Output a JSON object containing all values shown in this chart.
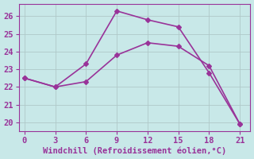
{
  "line1_x": [
    0,
    3,
    6,
    9,
    12,
    15,
    18,
    21
  ],
  "line1_y": [
    22.5,
    22.0,
    23.3,
    26.3,
    25.8,
    25.4,
    22.8,
    19.9
  ],
  "line2_x": [
    0,
    3,
    6,
    9,
    12,
    15,
    18,
    21
  ],
  "line2_y": [
    22.5,
    22.0,
    22.3,
    23.8,
    24.5,
    24.3,
    23.2,
    19.9
  ],
  "line_color": "#993399",
  "bg_color": "#C8E8E8",
  "xlabel": "Windchill (Refroidissement éolien,°C)",
  "xlabel_color": "#993399",
  "xlim": [
    -0.5,
    22.0
  ],
  "ylim": [
    19.5,
    26.7
  ],
  "xticks": [
    0,
    3,
    6,
    9,
    12,
    15,
    18,
    21
  ],
  "yticks": [
    20,
    21,
    22,
    23,
    24,
    25,
    26
  ],
  "grid_color": "#B0C8C8",
  "spine_color": "#993399",
  "tick_color": "#993399",
  "marker": "D",
  "markersize": 3,
  "linewidth": 1.2,
  "xlabel_fontsize": 7.5,
  "tick_fontsize": 7.5
}
